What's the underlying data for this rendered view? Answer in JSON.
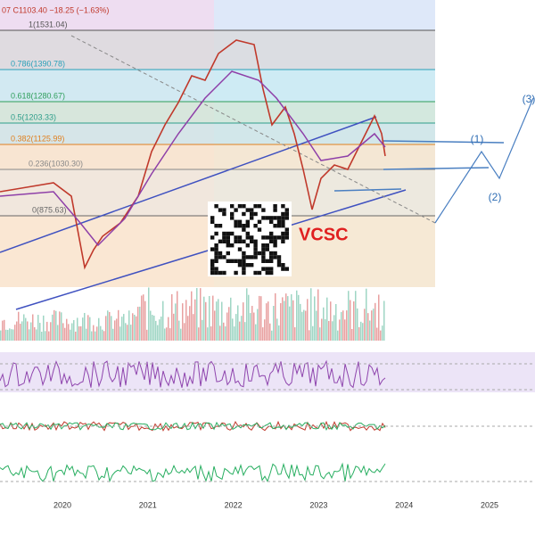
{
  "header": {
    "ohlc": "07  C1103.40  −18.25 (−1.63%)"
  },
  "fib_levels": [
    {
      "label": "1(1531.04)"
    },
    {
      "label": "0.786(1390.78)"
    },
    {
      "label": "0.618(1280.67)"
    },
    {
      "label": "0.5(1203.33)"
    },
    {
      "label": "0.382(1125.99)"
    },
    {
      "label": "0.236(1030.30)"
    },
    {
      "label": "0(875.63)"
    }
  ],
  "waves": [
    "(1)",
    "(2)",
    "(3)"
  ],
  "brand": "VCSC",
  "x_axis": [
    "2020",
    "2021",
    "2022",
    "2023",
    "2024",
    "2025"
  ]
}
